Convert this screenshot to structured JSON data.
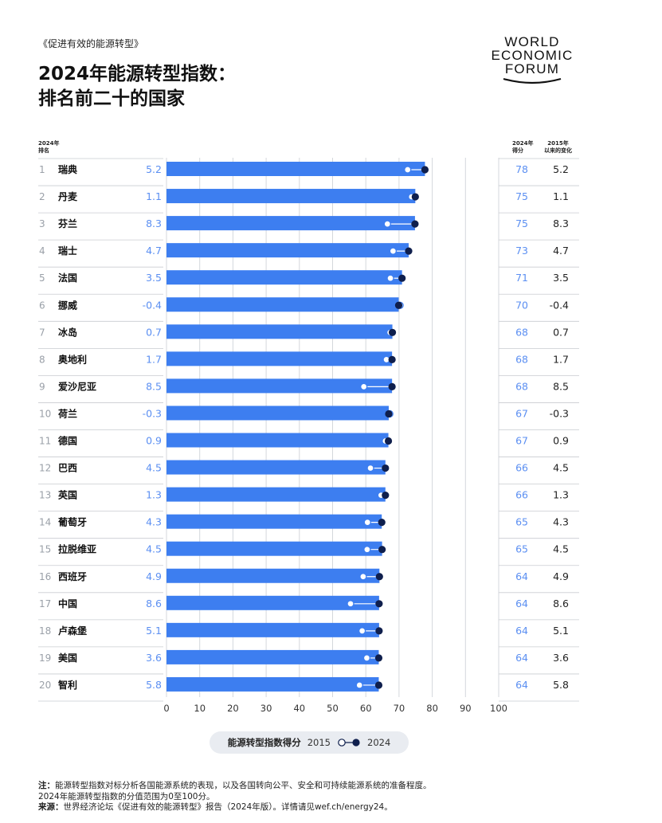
{
  "header": {
    "kicker": "《促进有效的能源转型》",
    "title_line1": "2024年能源转型指数：",
    "title_line2": "排名前二十的国家"
  },
  "logo": {
    "line1": "WORLD",
    "line2": "ECONOMIC",
    "line3": "FORUM"
  },
  "columns": {
    "rank_header_line1": "2024年",
    "rank_header_line2": "排名",
    "score_header_line1": "2024年",
    "score_header_line2": "得分",
    "change_header_line1": "2015年",
    "change_header_line2": "以来的变化"
  },
  "legend": {
    "label": "能源转型指数得分",
    "year_a": "2015",
    "year_b": "2024"
  },
  "notes": {
    "note_label": "注：",
    "note_text": "能源转型指数对标分析各国能源系统的表现，以及各国转向公平、安全和可持续能源系统的准备程度。",
    "note_line2": "2024年能源转型指数的分值范围为0至100分。",
    "source_label": "来源：",
    "source_text": "世界经济论坛《促进有效的能源转型》报告（2024年版）。详情请见wef.ch/energy24。"
  },
  "colors": {
    "bar": "#3d7ef0",
    "dot_2024": "#0f1f4d",
    "dot_2015": "#ffffff",
    "change_text": "#5b8ff2",
    "grid": "#d4d7dc"
  },
  "chart_data": {
    "type": "bar",
    "xlim": [
      0,
      100
    ],
    "xticks": [
      "0",
      "10",
      "20",
      "30",
      "40",
      "50",
      "60",
      "70",
      "80",
      "90",
      "100"
    ],
    "rows": [
      {
        "rank": "1",
        "country": "瑞典",
        "change": "5.2",
        "score_label": "78",
        "change_label": "5.2",
        "score_2024": 77.8,
        "score_2015": 72.6
      },
      {
        "rank": "2",
        "country": "丹麦",
        "change": "1.1",
        "score_label": "75",
        "change_label": "1.1",
        "score_2024": 74.9,
        "score_2015": 73.8
      },
      {
        "rank": "3",
        "country": "芬兰",
        "change": "8.3",
        "score_label": "75",
        "change_label": "8.3",
        "score_2024": 74.8,
        "score_2015": 66.5
      },
      {
        "rank": "4",
        "country": "瑞士",
        "change": "4.7",
        "score_label": "73",
        "change_label": "4.7",
        "score_2024": 72.9,
        "score_2015": 68.2
      },
      {
        "rank": "5",
        "country": "法国",
        "change": "3.5",
        "score_label": "71",
        "change_label": "3.5",
        "score_2024": 70.9,
        "score_2015": 67.4
      },
      {
        "rank": "6",
        "country": "挪威",
        "change": "-0.4",
        "score_label": "70",
        "change_label": "-0.4",
        "score_2024": 69.9,
        "score_2015": 70.3
      },
      {
        "rank": "7",
        "country": "冰岛",
        "change": "0.7",
        "score_label": "68",
        "change_label": "0.7",
        "score_2024": 68.0,
        "score_2015": 67.3
      },
      {
        "rank": "8",
        "country": "奥地利",
        "change": "1.7",
        "score_label": "68",
        "change_label": "1.7",
        "score_2024": 67.9,
        "score_2015": 66.2
      },
      {
        "rank": "9",
        "country": "爱沙尼亚",
        "change": "8.5",
        "score_label": "68",
        "change_label": "8.5",
        "score_2024": 67.9,
        "score_2015": 59.4
      },
      {
        "rank": "10",
        "country": "荷兰",
        "change": "-0.3",
        "score_label": "67",
        "change_label": "-0.3",
        "score_2024": 66.9,
        "score_2015": 67.2
      },
      {
        "rank": "11",
        "country": "德国",
        "change": "0.9",
        "score_label": "67",
        "change_label": "0.9",
        "score_2024": 66.8,
        "score_2015": 65.9
      },
      {
        "rank": "12",
        "country": "巴西",
        "change": "4.5",
        "score_label": "66",
        "change_label": "4.5",
        "score_2024": 65.9,
        "score_2015": 61.4
      },
      {
        "rank": "13",
        "country": "英国",
        "change": "1.3",
        "score_label": "66",
        "change_label": "1.3",
        "score_2024": 65.9,
        "score_2015": 64.6
      },
      {
        "rank": "14",
        "country": "葡萄牙",
        "change": "4.3",
        "score_label": "65",
        "change_label": "4.3",
        "score_2024": 64.8,
        "score_2015": 60.5
      },
      {
        "rank": "15",
        "country": "拉脱维亚",
        "change": "4.5",
        "score_label": "65",
        "change_label": "4.5",
        "score_2024": 64.9,
        "score_2015": 60.4
      },
      {
        "rank": "16",
        "country": "西班牙",
        "change": "4.9",
        "score_label": "64",
        "change_label": "4.9",
        "score_2024": 64.1,
        "score_2015": 59.2
      },
      {
        "rank": "17",
        "country": "中国",
        "change": "8.6",
        "score_label": "64",
        "change_label": "8.6",
        "score_2024": 64.0,
        "score_2015": 55.4
      },
      {
        "rank": "18",
        "country": "卢森堡",
        "change": "5.1",
        "score_label": "64",
        "change_label": "5.1",
        "score_2024": 64.0,
        "score_2015": 58.9
      },
      {
        "rank": "19",
        "country": "美国",
        "change": "3.6",
        "score_label": "64",
        "change_label": "3.6",
        "score_2024": 63.9,
        "score_2015": 60.3
      },
      {
        "rank": "20",
        "country": "智利",
        "change": "5.8",
        "score_label": "64",
        "change_label": "5.8",
        "score_2024": 63.9,
        "score_2015": 58.1
      }
    ]
  }
}
